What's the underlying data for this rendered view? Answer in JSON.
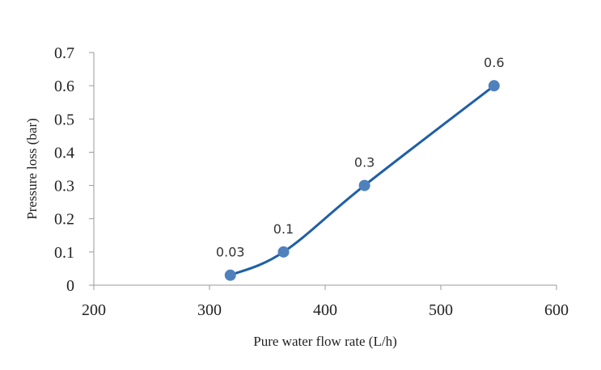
{
  "chart_data": {
    "type": "scatter",
    "title": "",
    "xlabel": "Pure water flow rate (L/h)",
    "ylabel": "Pressure loss (bar)",
    "xlim": [
      200,
      600
    ],
    "ylim": [
      0,
      0.7
    ],
    "xticks": [
      "200",
      "300",
      "400",
      "500",
      "600"
    ],
    "yticks": [
      "0",
      "0.1",
      "0.2",
      "0.3",
      "0.4",
      "0.5",
      "0.6",
      "0.7"
    ],
    "grid": false,
    "legend": "none",
    "series": [
      {
        "x": [
          318,
          364,
          434,
          546
        ],
        "y": [
          0.03,
          0.1,
          0.3,
          0.6
        ],
        "labels": [
          "0.03",
          "0.1",
          "0.3",
          "0.6"
        ],
        "line": "smooth",
        "line_color": "#1f5fa6",
        "marker_color": "#4f81bd"
      }
    ]
  }
}
